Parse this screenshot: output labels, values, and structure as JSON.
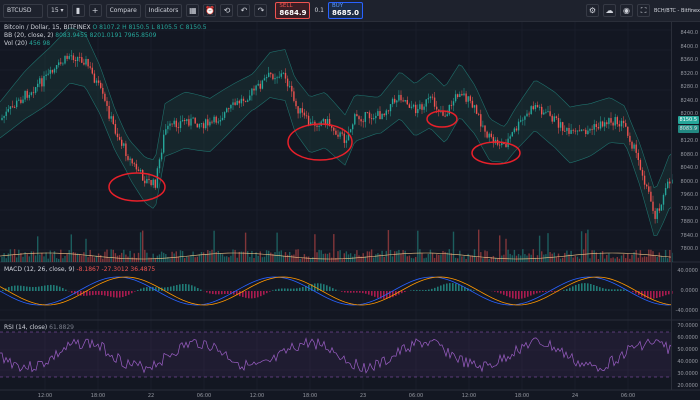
{
  "toolbar": {
    "symbol": "BTCUSD",
    "interval": "15",
    "compare_label": "Compare",
    "indicators_label": "Indicators",
    "sell": {
      "label": "SELL",
      "price": "8684.9"
    },
    "spread": "0.1",
    "buy": {
      "label": "BUY",
      "price": "8685.0"
    },
    "right_label": "BCH/BTC - Bitfinex",
    "icons": [
      "plus-icon",
      "candles-icon",
      "fx-icon",
      "templates-icon",
      "settings-icon",
      "fullscreen-icon",
      "camera-icon",
      "cloud-icon",
      "publish-icon"
    ]
  },
  "legend": {
    "title": "Bitcoin / Dollar, 15, BITFINEX",
    "ohlc": "O 8107.2  H 8150.5  L 8105.5  C 8150.5",
    "bb": "BB (20, close, 2)",
    "bb_values": "8083.9455  8201.0191  7965.8509",
    "vol": "Vol (20)",
    "vol_values": "456  98"
  },
  "macd": {
    "label": "MACD (12, 26, close, 9)",
    "values": "-8.1867  -27.3012  36.4875"
  },
  "rsi": {
    "label": "RSI (14, close)",
    "values": "61.8829"
  },
  "price_axis": [
    "8440.0",
    "8400.0",
    "8360.0",
    "8320.0",
    "8280.0",
    "8240.0",
    "8200.0",
    "8160.0",
    "8120.0",
    "8080.0",
    "8040.0",
    "8000.0",
    "7960.0",
    "7920.0",
    "7880.0",
    "7840.0",
    "7800.0"
  ],
  "price_tags": {
    "last": "8150.5",
    "bb": "8083.9"
  },
  "macd_axis": [
    "40.0000",
    "0.0000",
    "-40.0000"
  ],
  "rsi_axis": [
    "70.0000",
    "60.0000",
    "50.0000",
    "40.0000",
    "30.0000",
    "20.0000"
  ],
  "time_axis": [
    "12:00",
    "18:00",
    "22",
    "06:00",
    "12:00",
    "18:00",
    "23",
    "06:00",
    "12:00",
    "18:00",
    "24",
    "06:00"
  ],
  "colors": {
    "up": "#26a69a",
    "down": "#ef5350",
    "circle": "#e8202a",
    "bb_fill": "#1b3a3a",
    "rsi": "#7b3ea8"
  }
}
